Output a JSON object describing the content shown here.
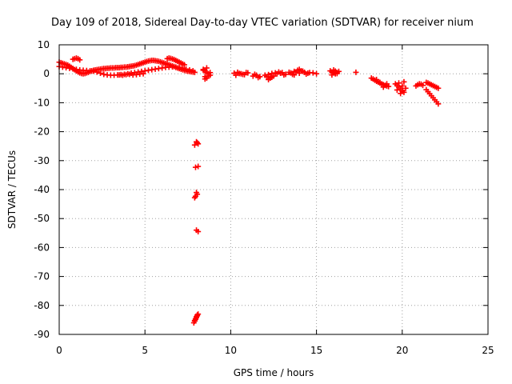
{
  "chart_data": {
    "type": "scatter",
    "title": "Day 109 of 2018, Sidereal Day-to-day VTEC variation (SDTVAR) for receiver nium",
    "xlabel": "GPS time / hours",
    "ylabel": "SDTVAR / TECUs",
    "xlim": [
      0,
      25
    ],
    "ylim": [
      -90,
      10
    ],
    "xticks": [
      "0",
      "5",
      "10",
      "15",
      "20",
      "25"
    ],
    "yticks": [
      "10",
      "0",
      "-10",
      "-20",
      "-30",
      "-40",
      "-50",
      "-60",
      "-70",
      "-80",
      "-90"
    ],
    "grid": true,
    "marker": "plus",
    "color": "#ff0000",
    "series": [
      {
        "name": "SDTVAR",
        "x": [
          0.0,
          0.1,
          0.2,
          0.3,
          0.4,
          0.5,
          0.6,
          0.7,
          0.8,
          0.9,
          1.0,
          1.1,
          1.2,
          1.3,
          1.4,
          1.5,
          1.6,
          1.7,
          1.8,
          1.9,
          2.0,
          2.1,
          2.2,
          2.3,
          2.4,
          2.5,
          2.6,
          2.7,
          2.8,
          2.9,
          3.0,
          3.1,
          3.2,
          3.3,
          3.4,
          3.5,
          3.6,
          3.7,
          3.8,
          3.9,
          4.0,
          4.1,
          4.2,
          4.3,
          4.4,
          4.5,
          4.6,
          4.7,
          4.8,
          4.9,
          5.0,
          5.1,
          5.2,
          5.3,
          5.4,
          5.5,
          5.6,
          5.7,
          5.8,
          5.9,
          6.0,
          6.1,
          6.2,
          6.3,
          6.4,
          6.5,
          6.6,
          6.7,
          6.8,
          6.9,
          7.0,
          7.1,
          7.2,
          7.3,
          7.4,
          7.5,
          7.6,
          7.7,
          7.8,
          7.9,
          0.0,
          0.2,
          0.4,
          0.6,
          0.8,
          1.0,
          1.2,
          1.4,
          1.6,
          1.8,
          2.0,
          2.2,
          2.4,
          2.6,
          2.8,
          3.0,
          3.2,
          3.4,
          3.6,
          3.8,
          4.0,
          4.2,
          4.4,
          4.6,
          4.8,
          5.0,
          5.2,
          5.4,
          5.6,
          5.8,
          6.0,
          6.2,
          6.4,
          6.6,
          6.8,
          7.0,
          7.2,
          7.4,
          7.6,
          7.8,
          0.8,
          0.9,
          1.0,
          1.1,
          1.2,
          6.3,
          6.4,
          6.5,
          6.6,
          6.7,
          6.8,
          6.9,
          7.0,
          7.1,
          7.2,
          7.3,
          3.5,
          3.7,
          3.9,
          4.1,
          4.3,
          4.5,
          4.7,
          4.9,
          8.0,
          8.05,
          8.1,
          7.9,
          8.1,
          7.95,
          8.0,
          8.05,
          7.95,
          7.9,
          8.0,
          8.1,
          7.85,
          7.9,
          7.95,
          8.0,
          8.05,
          8.1,
          7.9,
          7.95,
          8.0,
          8.05,
          8.4,
          8.5,
          8.6,
          8.7,
          8.8,
          8.5,
          8.6,
          8.7,
          8.4,
          8.8,
          8.6,
          8.5,
          10.2,
          10.4,
          10.6,
          10.8,
          11.0,
          10.3,
          10.5,
          10.7,
          10.9,
          11.3,
          11.5,
          11.7,
          11.4,
          11.6,
          12.0,
          12.2,
          12.4,
          12.6,
          12.8,
          13.0,
          13.2,
          13.4,
          12.1,
          12.3,
          12.5,
          12.7,
          12.9,
          13.1,
          12.2,
          12.4,
          13.5,
          13.7,
          13.9,
          14.1,
          14.3,
          14.5,
          13.6,
          13.8,
          14.0,
          14.2,
          14.4,
          14.6,
          14.8,
          15.0,
          13.7,
          14.0,
          15.8,
          15.9,
          16.0,
          16.1,
          16.2,
          16.3,
          15.9,
          16.0,
          16.1,
          16.2,
          17.3,
          18.2,
          18.3,
          18.4,
          18.5,
          18.6,
          18.7,
          18.8,
          18.9,
          19.0,
          19.1,
          19.2,
          18.5,
          18.7,
          18.9,
          19.1,
          19.6,
          19.7,
          19.8,
          19.9,
          20.0,
          20.1,
          20.2,
          19.8,
          19.9,
          20.0,
          20.1,
          19.7,
          20.0,
          20.8,
          20.9,
          21.0,
          21.1,
          21.2,
          21.4,
          21.5,
          21.6,
          21.7,
          21.8,
          21.9,
          22.0,
          22.1,
          21.4,
          21.5,
          21.6,
          21.7,
          21.8,
          21.9,
          22.0,
          22.1
        ],
        "y": [
          4.0,
          3.8,
          3.6,
          3.4,
          3.2,
          3.0,
          2.6,
          2.2,
          1.8,
          1.4,
          1.0,
          0.6,
          0.3,
          0.1,
          0.0,
          0.1,
          0.3,
          0.5,
          0.8,
          1.0,
          1.2,
          1.3,
          1.4,
          1.5,
          1.6,
          1.7,
          1.8,
          1.8,
          1.9,
          1.9,
          2.0,
          2.0,
          2.0,
          2.1,
          2.1,
          2.1,
          2.2,
          2.2,
          2.3,
          2.3,
          2.4,
          2.5,
          2.6,
          2.7,
          2.8,
          3.0,
          3.2,
          3.4,
          3.6,
          3.8,
          4.0,
          4.2,
          4.4,
          4.5,
          4.6,
          4.6,
          4.5,
          4.4,
          4.3,
          4.1,
          3.9,
          3.7,
          3.5,
          3.3,
          3.1,
          2.9,
          2.7,
          2.5,
          2.2,
          2.0,
          1.8,
          1.6,
          1.4,
          1.2,
          1.0,
          0.9,
          0.8,
          0.7,
          0.6,
          0.5,
          2.5,
          2.3,
          2.1,
          1.9,
          1.7,
          1.5,
          1.3,
          1.2,
          1.1,
          1.0,
          0.9,
          0.6,
          0.2,
          -0.2,
          -0.4,
          -0.5,
          -0.5,
          -0.4,
          -0.3,
          -0.2,
          0.0,
          0.2,
          0.4,
          0.6,
          0.8,
          1.0,
          1.2,
          1.4,
          1.6,
          1.8,
          2.0,
          2.2,
          2.3,
          2.4,
          2.3,
          2.1,
          1.9,
          1.6,
          1.3,
          1.0,
          5.0,
          5.2,
          5.4,
          5.2,
          4.8,
          5.2,
          5.4,
          5.3,
          5.1,
          4.9,
          4.6,
          4.3,
          4.0,
          3.7,
          3.4,
          3.1,
          -0.4,
          -0.5,
          -0.3,
          -0.2,
          -0.4,
          -0.3,
          -0.1,
          0.0,
          -23.5,
          -23.8,
          -24.2,
          -24.6,
          -32.0,
          -32.3,
          -41.0,
          -41.6,
          -42.3,
          -42.8,
          -54.0,
          -54.5,
          -86.0,
          -85.4,
          -84.8,
          -84.2,
          -83.6,
          -83.0,
          -85.2,
          -84.6,
          -83.9,
          -83.3,
          1.5,
          1.0,
          0.5,
          0.0,
          -0.5,
          -1.0,
          -1.5,
          -0.8,
          1.2,
          0.4,
          2.0,
          -1.8,
          0.2,
          0.5,
          0.0,
          -0.3,
          0.3,
          -0.5,
          0.1,
          -0.2,
          0.4,
          -0.8,
          -0.5,
          -1.0,
          -0.2,
          -1.3,
          -0.5,
          -0.3,
          0.1,
          0.3,
          0.6,
          0.4,
          -0.2,
          0.5,
          -1.0,
          -1.5,
          -0.8,
          0.0,
          0.2,
          -0.4,
          -2.0,
          -1.2,
          0.3,
          0.8,
          1.2,
          1.0,
          0.5,
          0.2,
          -0.2,
          0.6,
          1.5,
          0.9,
          -0.1,
          0.4,
          0.3,
          0.0,
          -0.4,
          0.2,
          1.0,
          0.6,
          0.3,
          0.0,
          0.4,
          0.8,
          -0.4,
          1.3,
          0.9,
          0.1,
          0.5,
          -1.5,
          -1.8,
          -2.2,
          -2.6,
          -2.9,
          -3.2,
          -3.5,
          -3.8,
          -4.0,
          -4.2,
          -4.4,
          -2.0,
          -3.0,
          -4.6,
          -3.5,
          -3.5,
          -4.0,
          -4.6,
          -5.2,
          -5.8,
          -6.4,
          -5.0,
          -3.2,
          -6.8,
          -4.2,
          -2.8,
          -5.6,
          -6.0,
          -4.2,
          -3.8,
          -3.5,
          -3.6,
          -4.0,
          -5.5,
          -6.2,
          -6.9,
          -7.6,
          -8.3,
          -9.0,
          -9.7,
          -10.4,
          -3.0,
          -3.2,
          -3.5,
          -3.8,
          -4.1,
          -4.4,
          -4.7,
          -5.0
        ]
      }
    ]
  }
}
